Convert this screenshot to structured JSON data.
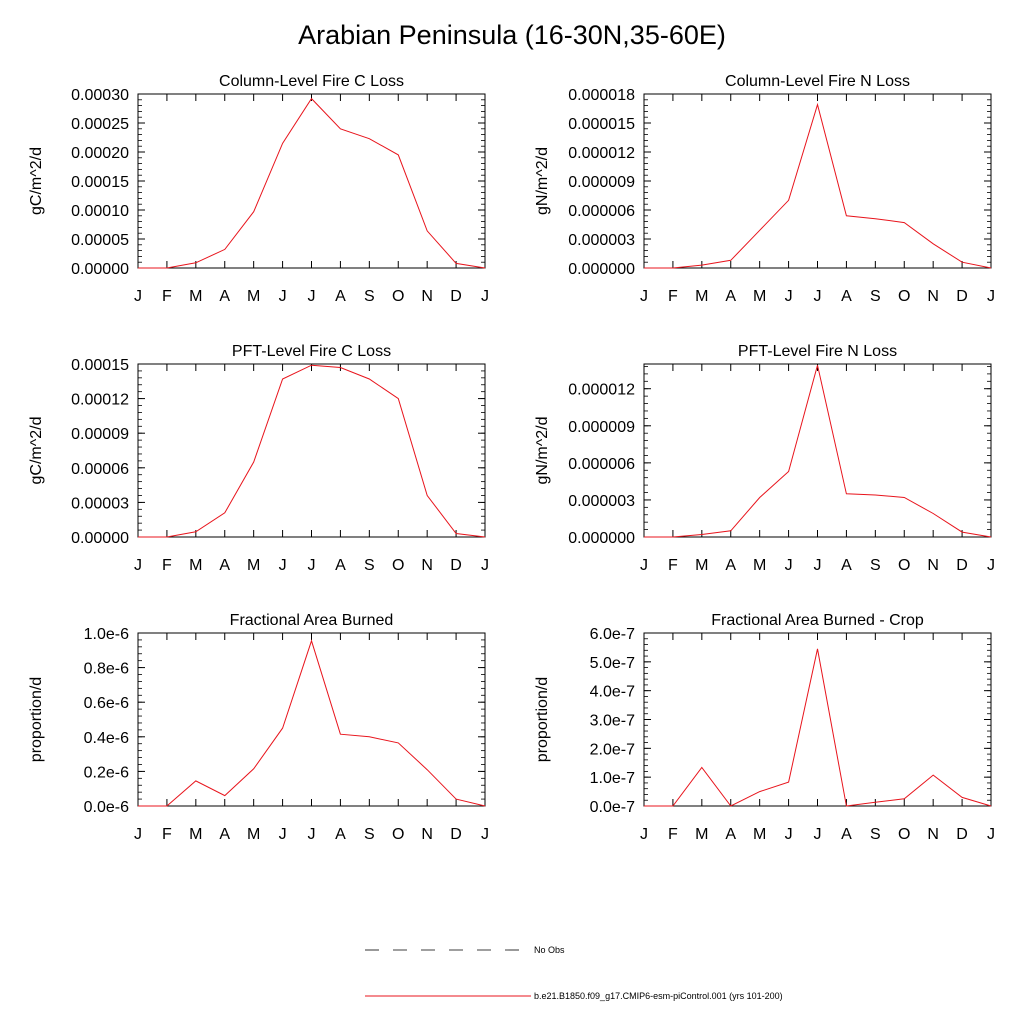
{
  "page": {
    "title": "Arabian Peninsula (16-30N,35-60E)"
  },
  "legend": {
    "obs_label": "No Obs",
    "model_label": "b.e21.B1850.f09_g17.CMIP6-esm-piControl.001 (yrs 101-200)",
    "model_color": "#e8141c",
    "obs_color": "#000000"
  },
  "chart_data": [
    {
      "type": "line",
      "title": "Column-Level Fire C Loss",
      "ylabel": "gC/m^2/d",
      "categories": [
        "J",
        "F",
        "M",
        "A",
        "M",
        "J",
        "J",
        "A",
        "S",
        "O",
        "N",
        "D",
        "J"
      ],
      "ylim": [
        0,
        0.0003
      ],
      "yticks": [
        0,
        5e-05,
        0.0001,
        0.00015,
        0.0002,
        0.00025,
        0.0003
      ],
      "ytick_labels": [
        "0.00000",
        "0.00005",
        "0.00010",
        "0.00015",
        "0.00020",
        "0.00025",
        "0.00030"
      ],
      "series": [
        {
          "name": "b.e21.B1850.f09_g17.CMIP6-esm-piControl.001 (yrs 101-200)",
          "values": [
            0,
            0,
            9e-06,
            3.2e-05,
            9.7e-05,
            0.000215,
            0.000292,
            0.00024,
            0.000223,
            0.000195,
            6.4e-05,
            8e-06,
            0
          ]
        }
      ]
    },
    {
      "type": "line",
      "title": "Column-Level Fire N Loss",
      "ylabel": "gN/m^2/d",
      "categories": [
        "J",
        "F",
        "M",
        "A",
        "M",
        "J",
        "J",
        "A",
        "S",
        "O",
        "N",
        "D",
        "J"
      ],
      "ylim": [
        0,
        1.8e-05
      ],
      "yticks": [
        0,
        3e-06,
        6e-06,
        9e-06,
        1.2e-05,
        1.5e-05,
        1.8e-05
      ],
      "ytick_labels": [
        "0.000000",
        "0.000003",
        "0.000006",
        "0.000009",
        "0.000012",
        "0.000015",
        "0.000018"
      ],
      "series": [
        {
          "name": "b.e21.B1850.f09_g17.CMIP6-esm-piControl.001 (yrs 101-200)",
          "values": [
            0,
            0,
            3e-07,
            8e-07,
            3.9e-06,
            7e-06,
            1.69e-05,
            5.4e-06,
            5.1e-06,
            4.7e-06,
            2.5e-06,
            6e-07,
            0
          ]
        }
      ]
    },
    {
      "type": "line",
      "title": "PFT-Level Fire C Loss",
      "ylabel": "gC/m^2/d",
      "categories": [
        "J",
        "F",
        "M",
        "A",
        "M",
        "J",
        "J",
        "A",
        "S",
        "O",
        "N",
        "D",
        "J"
      ],
      "ylim": [
        0,
        0.00015
      ],
      "yticks": [
        0,
        3e-05,
        6e-05,
        9e-05,
        0.00012,
        0.00015
      ],
      "ytick_labels": [
        "0.00000",
        "0.00003",
        "0.00006",
        "0.00009",
        "0.00012",
        "0.00015"
      ],
      "series": [
        {
          "name": "b.e21.B1850.f09_g17.CMIP6-esm-piControl.001 (yrs 101-200)",
          "values": [
            0,
            0,
            4.5e-06,
            2.1e-05,
            6.5e-05,
            0.000137,
            0.000149,
            0.000147,
            0.000137,
            0.00012,
            3.6e-05,
            3e-06,
            0
          ]
        }
      ]
    },
    {
      "type": "line",
      "title": "PFT-Level Fire N Loss",
      "ylabel": "gN/m^2/d",
      "categories": [
        "J",
        "F",
        "M",
        "A",
        "M",
        "J",
        "J",
        "A",
        "S",
        "O",
        "N",
        "D",
        "J"
      ],
      "ylim": [
        0,
        1.4e-05
      ],
      "yticks": [
        0,
        3e-06,
        6e-06,
        9e-06,
        1.2e-05
      ],
      "ytick_labels": [
        "0.000000",
        "0.000003",
        "0.000006",
        "0.000009",
        "0.000012"
      ],
      "series": [
        {
          "name": "b.e21.B1850.f09_g17.CMIP6-esm-piControl.001 (yrs 101-200)",
          "values": [
            0,
            0,
            2e-07,
            5e-07,
            3.2e-06,
            5.3e-06,
            1.39e-05,
            3.5e-06,
            3.4e-06,
            3.2e-06,
            1.9e-06,
            4e-07,
            0
          ]
        }
      ]
    },
    {
      "type": "line",
      "title": "Fractional Area Burned",
      "ylabel": "proportion/d",
      "categories": [
        "J",
        "F",
        "M",
        "A",
        "M",
        "J",
        "J",
        "A",
        "S",
        "O",
        "N",
        "D",
        "J"
      ],
      "ylim": [
        0,
        1e-06
      ],
      "yticks": [
        0,
        2e-07,
        4e-07,
        6e-07,
        8e-07,
        1e-06
      ],
      "ytick_labels": [
        "0.0e-6",
        "0.2e-6",
        "0.4e-6",
        "0.6e-6",
        "0.8e-6",
        "1.0e-6"
      ],
      "series": [
        {
          "name": "b.e21.B1850.f09_g17.CMIP6-esm-piControl.001 (yrs 101-200)",
          "values": [
            0,
            0,
            1.45e-07,
            6e-08,
            2.15e-07,
            4.5e-07,
            9.55e-07,
            4.15e-07,
            4e-07,
            3.65e-07,
            2.1e-07,
            4e-08,
            0
          ]
        }
      ]
    },
    {
      "type": "line",
      "title": "Fractional Area Burned - Crop",
      "ylabel": "proportion/d",
      "categories": [
        "J",
        "F",
        "M",
        "A",
        "M",
        "J",
        "J",
        "A",
        "S",
        "O",
        "N",
        "D",
        "J"
      ],
      "ylim": [
        0,
        6e-07
      ],
      "yticks": [
        0,
        1e-07,
        2e-07,
        3e-07,
        4e-07,
        5e-07,
        6e-07
      ],
      "ytick_labels": [
        "0.0e-7",
        "1.0e-7",
        "2.0e-7",
        "3.0e-7",
        "4.0e-7",
        "5.0e-7",
        "6.0e-7"
      ],
      "series": [
        {
          "name": "b.e21.B1850.f09_g17.CMIP6-esm-piControl.001 (yrs 101-200)",
          "values": [
            0,
            0,
            1.34e-07,
            0,
            5e-08,
            8.3e-08,
            5.45e-07,
            0,
            1.3e-08,
            2.5e-08,
            1.07e-07,
            3e-08,
            0
          ]
        }
      ]
    }
  ]
}
